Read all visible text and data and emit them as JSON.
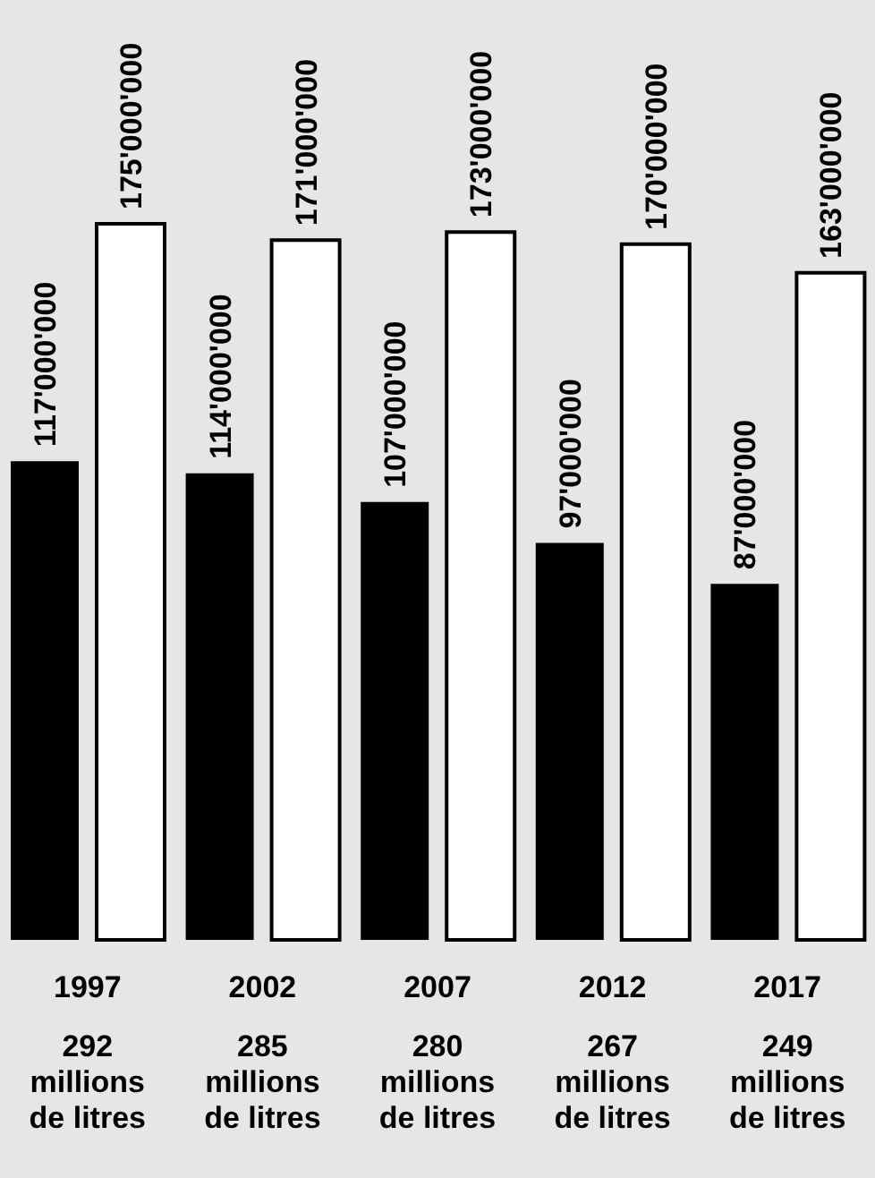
{
  "chart_data": {
    "type": "bar",
    "categories": [
      "1997",
      "2002",
      "2007",
      "2012",
      "2017"
    ],
    "series": [
      {
        "color": "#000000",
        "values": [
          117000000,
          114000000,
          107000000,
          97000000,
          87000000
        ],
        "value_labels": [
          "117'000'000",
          "114'000'000",
          "107'000'000",
          "97'000'000",
          "87'000'000"
        ]
      },
      {
        "color": "#ffffff",
        "values": [
          175000000,
          171000000,
          173000000,
          170000000,
          163000000
        ],
        "value_labels": [
          "175'000'000",
          "171'000'000",
          "173'000'000",
          "170'000'000",
          "163'000'000"
        ]
      }
    ],
    "annotations": [
      "292 millions de litres",
      "285 millions de litres",
      "280 millions de litres",
      "267 millions de litres",
      "249 millions de litres"
    ],
    "legend": false,
    "grid": false
  }
}
